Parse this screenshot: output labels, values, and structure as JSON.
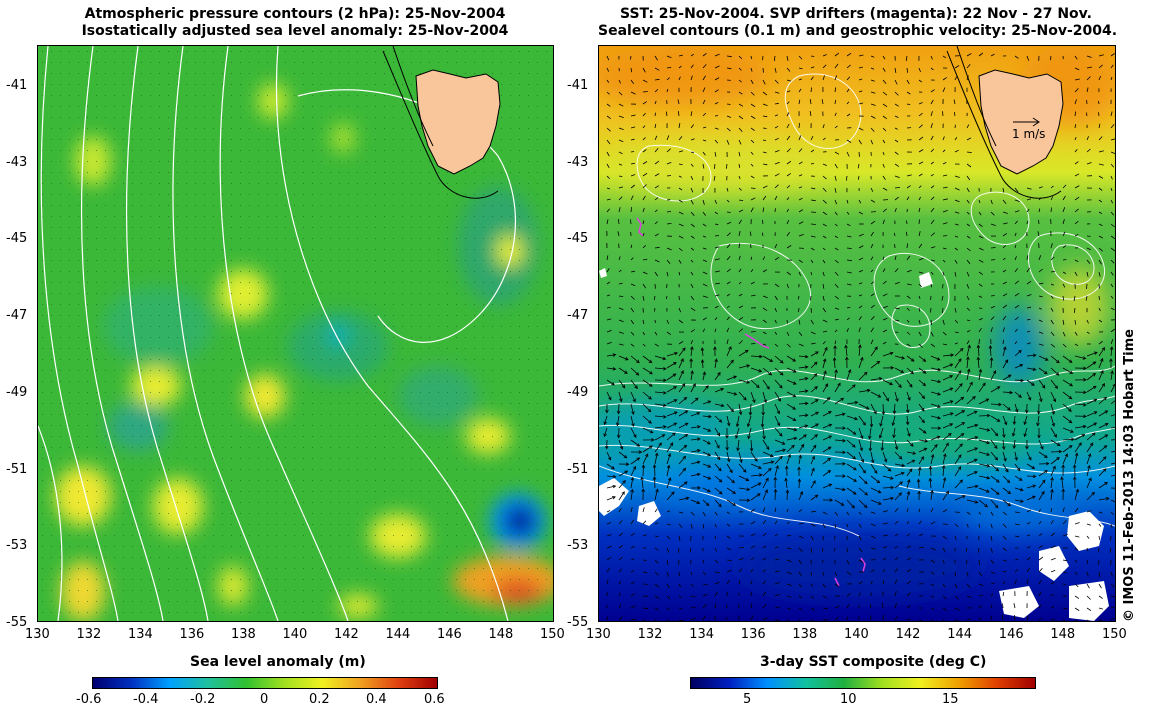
{
  "left_panel": {
    "title_line1": "Atmospheric pressure contours (2 hPa): 25-Nov-2004",
    "title_line2": "Isostatically adjusted sea level anomaly: 25-Nov-2004",
    "lat_ticks": [
      "-41",
      "-43",
      "-45",
      "-47",
      "-49",
      "-51",
      "-53",
      "-55"
    ],
    "lon_ticks": [
      "130",
      "132",
      "134",
      "136",
      "138",
      "140",
      "142",
      "144",
      "146",
      "148",
      "150"
    ],
    "colorbar": {
      "title": "Sea level anomaly (m)",
      "ticks": [
        "-0.6",
        "-0.4",
        "-0.2",
        "0",
        "0.2",
        "0.4",
        "0.6"
      ]
    }
  },
  "right_panel": {
    "title_line1": "SST: 25-Nov-2004. SVP drifters (magenta): 22 Nov - 27 Nov.",
    "title_line2": "Sealevel contours (0.1 m) and geostrophic velocity: 25-Nov-2004.",
    "lat_ticks": [
      "-41",
      "-43",
      "-45",
      "-47",
      "-49",
      "-51",
      "-53",
      "-55"
    ],
    "lon_ticks": [
      "130",
      "132",
      "134",
      "136",
      "138",
      "140",
      "142",
      "144",
      "146",
      "148",
      "150"
    ],
    "scale_label": "1 m/s",
    "colorbar": {
      "title": "3-day SST composite (deg C)",
      "ticks": [
        "5",
        "10",
        "15"
      ]
    }
  },
  "credit": "© IMOS 11-Feb-2013 14:03 Hobart Time",
  "colors": {
    "land": "#f9c59a",
    "sla_colormap": [
      "#000070",
      "#0030c0",
      "#00a0ff",
      "#20c080",
      "#30c030",
      "#90e020",
      "#f0f020",
      "#f0a020",
      "#e04010",
      "#a00000"
    ],
    "sst_colormap": [
      "#000060",
      "#0020c0",
      "#0090ff",
      "#10c0a0",
      "#20b040",
      "#a0e020",
      "#f0f020",
      "#f0a000",
      "#e04000",
      "#a00000"
    ],
    "drifter": "#e040e0"
  }
}
